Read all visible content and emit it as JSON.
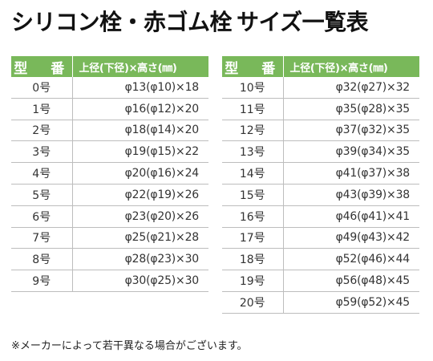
{
  "title": {
    "main": "シリコン栓・赤ゴム栓",
    "sub": "サイズ一覧表"
  },
  "table": {
    "header_type": "型　番",
    "header_size": "上径(下径)×高さ(㎜)"
  },
  "left_rows": [
    {
      "type": "0号",
      "size": "φ13(φ10)×18"
    },
    {
      "type": "1号",
      "size": "φ16(φ12)×20"
    },
    {
      "type": "2号",
      "size": "φ18(φ14)×20"
    },
    {
      "type": "3号",
      "size": "φ19(φ15)×22"
    },
    {
      "type": "4号",
      "size": "φ20(φ16)×24"
    },
    {
      "type": "5号",
      "size": "φ22(φ19)×26"
    },
    {
      "type": "6号",
      "size": "φ23(φ20)×26"
    },
    {
      "type": "7号",
      "size": "φ25(φ21)×28"
    },
    {
      "type": "8号",
      "size": "φ28(φ23)×30"
    },
    {
      "type": "9号",
      "size": "φ30(φ25)×30"
    }
  ],
  "right_rows": [
    {
      "type": "10号",
      "size": "φ32(φ27)×32"
    },
    {
      "type": "11号",
      "size": "φ35(φ28)×35"
    },
    {
      "type": "12号",
      "size": "φ37(φ32)×35"
    },
    {
      "type": "13号",
      "size": "φ39(φ34)×35"
    },
    {
      "type": "14号",
      "size": "φ41(φ37)×38"
    },
    {
      "type": "15号",
      "size": "φ43(φ39)×38"
    },
    {
      "type": "16号",
      "size": "φ46(φ41)×41"
    },
    {
      "type": "17号",
      "size": "φ49(φ43)×42"
    },
    {
      "type": "18号",
      "size": "φ52(φ46)×44"
    },
    {
      "type": "19号",
      "size": "φ56(φ48)×45"
    },
    {
      "type": "20号",
      "size": "φ59(φ52)×45"
    }
  ],
  "note": "※メーカーによって若干異なる場合がございます。",
  "colors": {
    "header_bg": "#79b85a",
    "header_text": "#ffffff",
    "row_border": "#bdbdbd"
  }
}
